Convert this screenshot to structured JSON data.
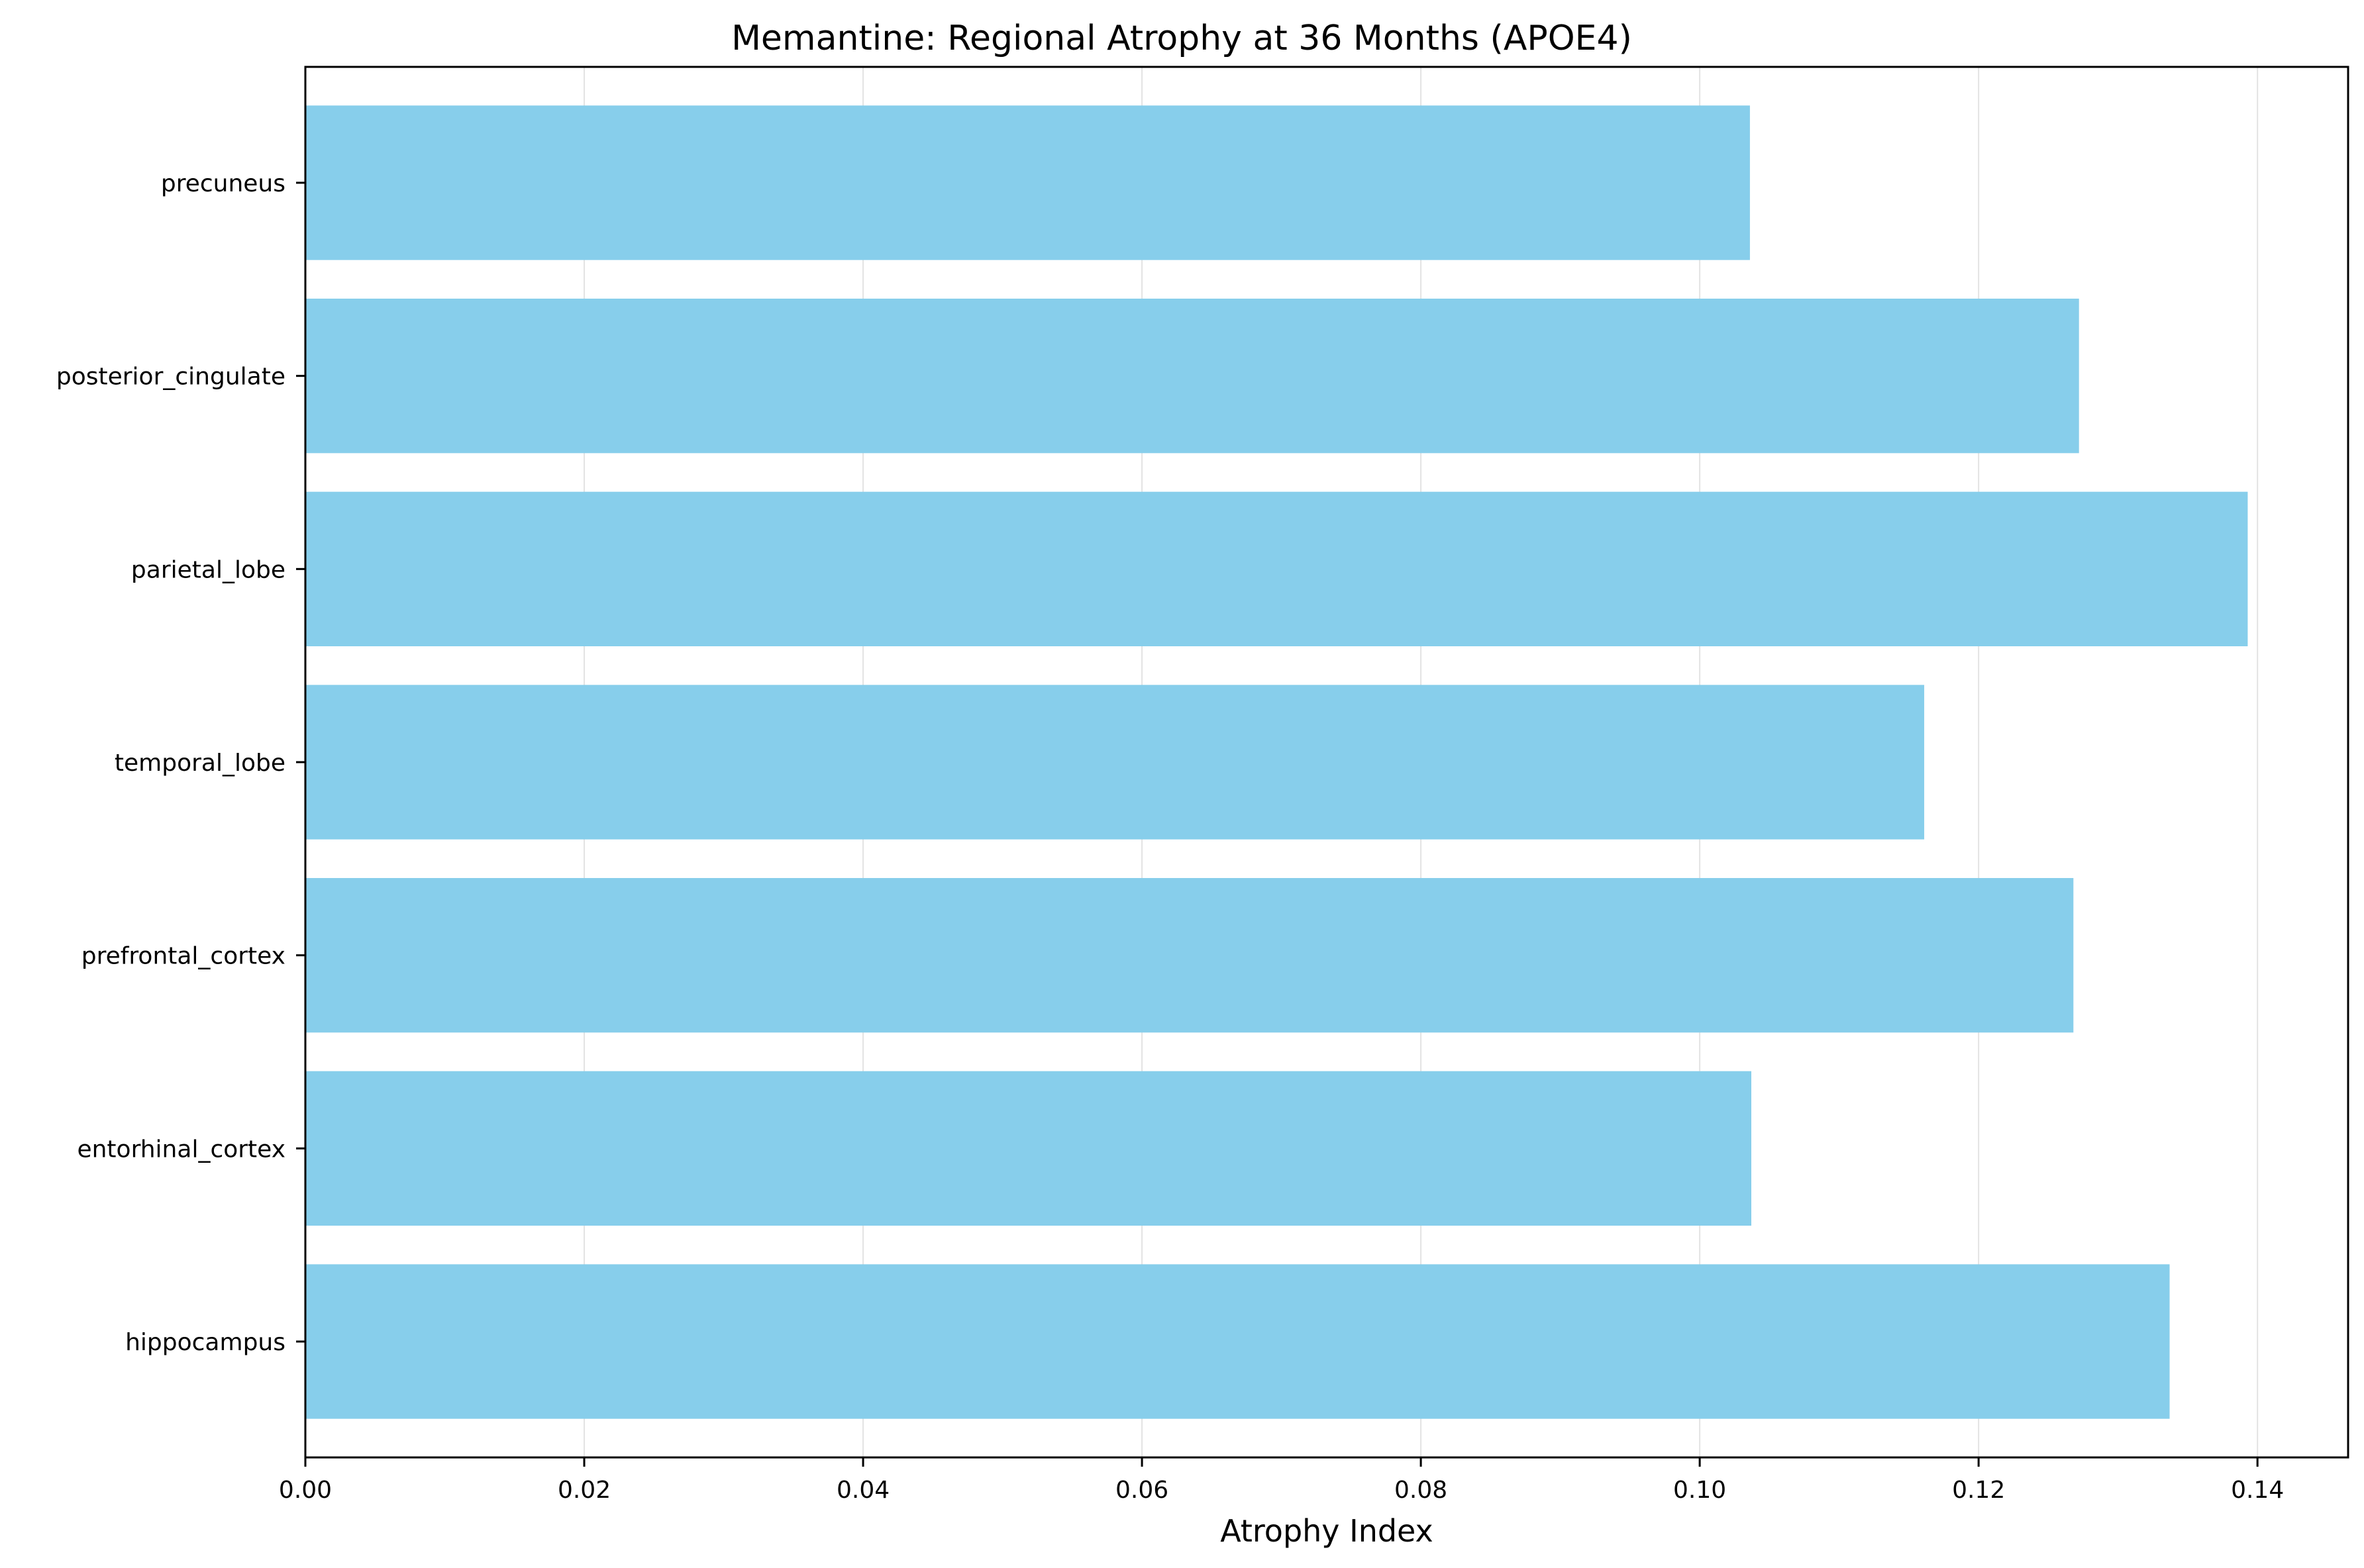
{
  "chart_data": {
    "type": "bar",
    "orientation": "horizontal",
    "title": "Memantine: Regional Atrophy at 36 Months (APOE4)",
    "xlabel": "Atrophy Index",
    "ylabel": "",
    "categories": [
      "hippocampus",
      "entorhinal_cortex",
      "prefrontal_cortex",
      "temporal_lobe",
      "parietal_lobe",
      "posterior_cingulate",
      "precuneus"
    ],
    "values": [
      0.1337,
      0.1037,
      0.1268,
      0.1161,
      0.1393,
      0.1272,
      0.1036
    ],
    "xlim": [
      0,
      0.1465
    ],
    "xticks": [
      0.0,
      0.02,
      0.04,
      0.06,
      0.08,
      0.1,
      0.12,
      0.14
    ],
    "xtick_labels": [
      "0.00",
      "0.02",
      "0.04",
      "0.06",
      "0.08",
      "0.10",
      "0.12",
      "0.14"
    ],
    "grid": "x",
    "legend": "none",
    "colors": {
      "bar": "#87CEEB",
      "grid": "#e3e3e3",
      "axis": "#000000"
    }
  }
}
